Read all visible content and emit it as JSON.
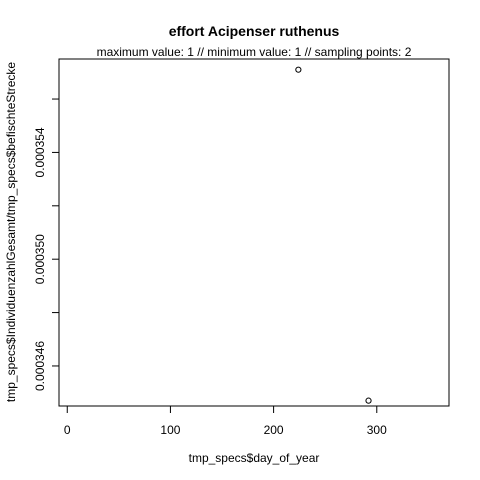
{
  "chart_data": {
    "type": "scatter",
    "title": "effort Acipenser ruthenus",
    "subtitle": "maximum value: 1  //  minimum value: 1  // sampling points: 2",
    "xlabel": "tmp_specs$day_of_year",
    "ylabel": "tmp_specs$IndividuenzahlGesamt/tmp_specs$befischteStrecke",
    "xlim": [
      -8,
      370
    ],
    "ylim": [
      0.0003445,
      0.0003575
    ],
    "xticks": [
      0,
      100,
      200,
      300
    ],
    "xtick_labels": [
      "0",
      "100",
      "200",
      "300"
    ],
    "yticks": [
      0.000346,
      0.000348,
      0.00035,
      0.000352,
      0.000354,
      0.000356
    ],
    "ytick_labels": [
      "0.000346",
      "",
      "0.000350",
      "",
      "0.000354",
      ""
    ],
    "x": [
      224,
      292
    ],
    "y": [
      0.0003571,
      0.0003447
    ],
    "grid": false,
    "marker": "open-circle",
    "colors": {
      "points": "#000000",
      "axes": "#000000",
      "background": "#ffffff"
    }
  }
}
